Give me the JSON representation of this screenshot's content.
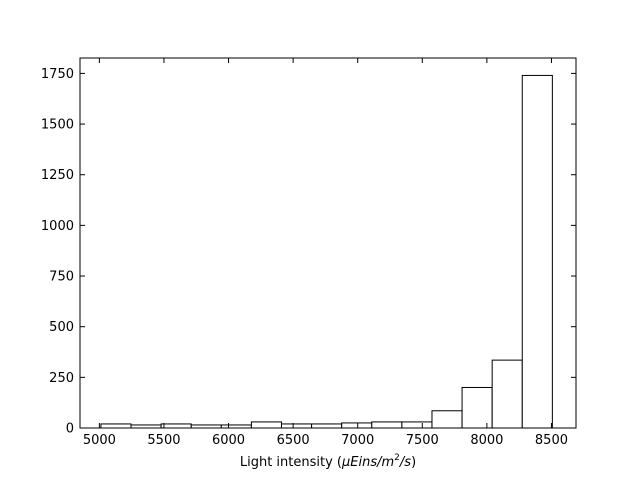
{
  "chart_data": {
    "type": "bar",
    "subtype": "histogram",
    "title": "",
    "xlabel": {
      "prefix": "Light intensity (",
      "mu": "μ",
      "body": "Eins/m",
      "sup": "2",
      "tail": "/s",
      "suffix": ")"
    },
    "ylabel": "",
    "xlim": [
      4850,
      8690
    ],
    "ylim": [
      0,
      1826
    ],
    "xticks": [
      5000,
      5500,
      6000,
      6500,
      7000,
      7500,
      8000,
      8500
    ],
    "xtick_labels": [
      "5000",
      "5500",
      "6000",
      "6500",
      "7000",
      "7500",
      "8000",
      "8500"
    ],
    "yticks": [
      0,
      250,
      500,
      750,
      1000,
      1250,
      1500,
      1750
    ],
    "ytick_labels": [
      "0",
      "250",
      "500",
      "750",
      "1000",
      "1250",
      "1500",
      "1750"
    ],
    "bins": [
      {
        "x0": 5012,
        "x1": 5245,
        "count": 20
      },
      {
        "x0": 5245,
        "x1": 5478,
        "count": 15
      },
      {
        "x0": 5478,
        "x1": 5711,
        "count": 20
      },
      {
        "x0": 5711,
        "x1": 5944,
        "count": 15
      },
      {
        "x0": 5944,
        "x1": 6177,
        "count": 15
      },
      {
        "x0": 6177,
        "x1": 6410,
        "count": 30
      },
      {
        "x0": 6410,
        "x1": 6643,
        "count": 20
      },
      {
        "x0": 6643,
        "x1": 6876,
        "count": 20
      },
      {
        "x0": 6876,
        "x1": 7109,
        "count": 25
      },
      {
        "x0": 7109,
        "x1": 7342,
        "count": 30
      },
      {
        "x0": 7342,
        "x1": 7575,
        "count": 30
      },
      {
        "x0": 7575,
        "x1": 7808,
        "count": 85
      },
      {
        "x0": 7808,
        "x1": 8041,
        "count": 200
      },
      {
        "x0": 8041,
        "x1": 8274,
        "count": 335
      },
      {
        "x0": 8274,
        "x1": 8507,
        "count": 1740
      }
    ],
    "grid": false,
    "legend": "none",
    "colors": {
      "bar_fill": "#ffffff",
      "bar_edge": "#000000",
      "axis": "#000000"
    }
  }
}
